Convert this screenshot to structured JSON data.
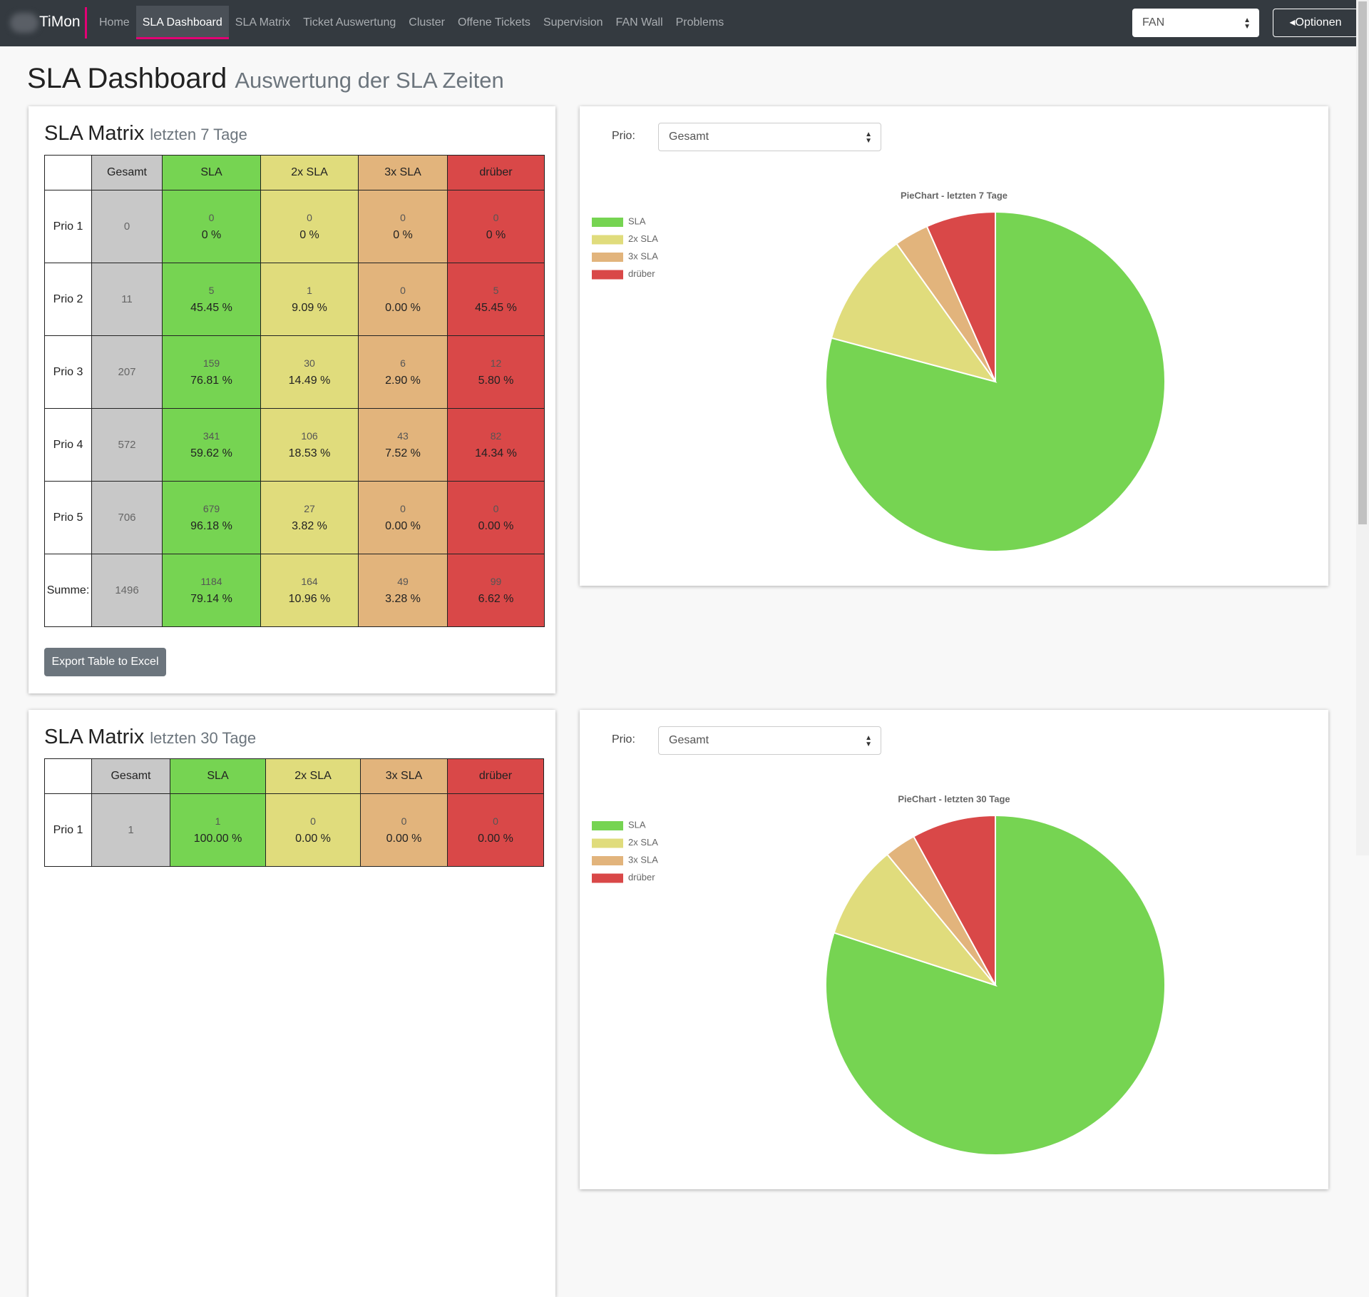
{
  "navbar": {
    "brand": "TiMon",
    "items": [
      "Home",
      "SLA Dashboard",
      "SLA Matrix",
      "Ticket Auswertung",
      "Cluster",
      "Offene Tickets",
      "Supervision",
      "FAN Wall",
      "Problems"
    ],
    "select": "FAN",
    "options_button": "Optionen"
  },
  "header": {
    "title": "SLA Dashboard",
    "subtitle": "Auswertung der SLA Zeiten"
  },
  "sections": [
    {
      "matrix": {
        "title": "SLA Matrix",
        "subtitle": "letzten 7 Tage",
        "columns": [
          "Gesamt",
          "SLA",
          "2x SLA",
          "3x SLA",
          "drüber"
        ],
        "rows": [
          {
            "label": "Prio 1",
            "total": 0,
            "cells": [
              {
                "count": 0,
                "percent": "0 %"
              },
              {
                "count": 0,
                "percent": "0 %"
              },
              {
                "count": 0,
                "percent": "0 %"
              },
              {
                "count": 0,
                "percent": "0 %"
              }
            ]
          },
          {
            "label": "Prio 2",
            "total": 11,
            "cells": [
              {
                "count": 5,
                "percent": "45.45 %"
              },
              {
                "count": 1,
                "percent": "9.09 %"
              },
              {
                "count": 0,
                "percent": "0.00 %"
              },
              {
                "count": 5,
                "percent": "45.45 %"
              }
            ]
          },
          {
            "label": "Prio 3",
            "total": 207,
            "cells": [
              {
                "count": 159,
                "percent": "76.81 %"
              },
              {
                "count": 30,
                "percent": "14.49 %"
              },
              {
                "count": 6,
                "percent": "2.90 %"
              },
              {
                "count": 12,
                "percent": "5.80 %"
              }
            ]
          },
          {
            "label": "Prio 4",
            "total": 572,
            "cells": [
              {
                "count": 341,
                "percent": "59.62 %"
              },
              {
                "count": 106,
                "percent": "18.53 %"
              },
              {
                "count": 43,
                "percent": "7.52 %"
              },
              {
                "count": 82,
                "percent": "14.34 %"
              }
            ]
          },
          {
            "label": "Prio 5",
            "total": 706,
            "cells": [
              {
                "count": 679,
                "percent": "96.18 %"
              },
              {
                "count": 27,
                "percent": "3.82 %"
              },
              {
                "count": 0,
                "percent": "0.00 %"
              },
              {
                "count": 0,
                "percent": "0.00 %"
              }
            ]
          },
          {
            "label": "Summe:",
            "total": 1496,
            "cells": [
              {
                "count": 1184,
                "percent": "79.14 %"
              },
              {
                "count": 164,
                "percent": "10.96 %"
              },
              {
                "count": 49,
                "percent": "3.28 %"
              },
              {
                "count": 99,
                "percent": "6.62 %"
              }
            ]
          }
        ],
        "export_button": "Export Table to Excel"
      },
      "chart": {
        "prio_label": "Prio:",
        "select": "Gesamt"
      },
      "chart_data": {
        "type": "pie",
        "title": "PieChart - letzten 7 Tage",
        "categories": [
          "SLA",
          "2x SLA",
          "3x SLA",
          "drüber"
        ],
        "values": [
          1184,
          164,
          49,
          99
        ],
        "colors": [
          "#76d452",
          "#e0dc7c",
          "#e2b47c",
          "#d94848"
        ]
      }
    },
    {
      "matrix": {
        "title": "SLA Matrix",
        "subtitle": "letzten 30 Tage",
        "columns": [
          "Gesamt",
          "SLA",
          "2x SLA",
          "3x SLA",
          "drüber"
        ],
        "rows": [
          {
            "label": "Prio 1",
            "total": 1,
            "cells": [
              {
                "count": 1,
                "percent": "100.00 %"
              },
              {
                "count": 0,
                "percent": "0.00 %"
              },
              {
                "count": 0,
                "percent": "0.00 %"
              },
              {
                "count": 0,
                "percent": "0.00 %"
              }
            ]
          }
        ]
      },
      "chart": {
        "prio_label": "Prio:",
        "select": "Gesamt"
      },
      "chart_data": {
        "type": "pie",
        "title": "PieChart - letzten 30 Tage",
        "categories": [
          "SLA",
          "2x SLA",
          "3x SLA",
          "drüber"
        ],
        "values": [
          80,
          9,
          3,
          8
        ],
        "colors": [
          "#76d452",
          "#e0dc7c",
          "#e2b47c",
          "#d94848"
        ]
      }
    }
  ]
}
